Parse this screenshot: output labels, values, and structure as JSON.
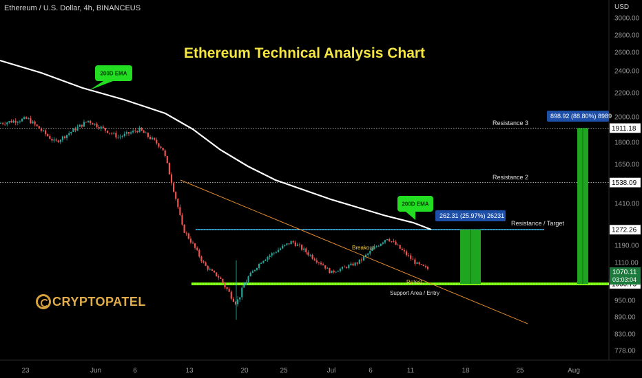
{
  "header": {
    "symbol_label": "Ethereum / U.S. Dollar, 4h, BINANCEUS",
    "title": "Ethereum Technical Analysis Chart"
  },
  "logo": {
    "text": "CRYPTOPATEL"
  },
  "colors": {
    "background": "#000000",
    "candle_up": "#26a69a",
    "candle_down": "#ef5350",
    "ema": "#ffffff",
    "trendline": "#e38a2e",
    "resistance_target": "#29b6f6",
    "support": "#76ff03",
    "projection": "#1fa51f",
    "callout": "#22dd22"
  },
  "chart_data": {
    "type": "candlestick",
    "symbol": "Ethereum / U.S. Dollar",
    "interval": "4h",
    "exchange": "BINANCEUS",
    "y_axis_label": "USD",
    "y_ticks": [
      3000,
      2800,
      2600,
      2400,
      2200,
      2000,
      1800,
      1650,
      1410,
      1190,
      1110,
      1020,
      950,
      890,
      830,
      778
    ],
    "x_ticks": [
      "23",
      "Jun",
      "6",
      "13",
      "20",
      "25",
      "Jul",
      "6",
      "11",
      "18",
      "25",
      "Aug"
    ],
    "ohlc_anchor_close": [
      [
        "23",
        1950
      ],
      [
        "27",
        1985
      ],
      [
        "30",
        1800
      ],
      [
        "Jun 2",
        1970
      ],
      [
        "Jun 5",
        1840
      ],
      [
        "Jun 7",
        1900
      ],
      [
        "Jun 10",
        1760
      ],
      [
        "13",
        1280
      ],
      [
        "16",
        1080
      ],
      [
        "18",
        940
      ],
      [
        "21",
        1120
      ],
      [
        "25",
        1210
      ],
      [
        "28",
        1100
      ],
      [
        "Jul 1",
        1050
      ],
      [
        "Jul 4",
        1110
      ],
      [
        "Jul 8",
        1230
      ],
      [
        "Jul 11",
        1100
      ],
      [
        "Jul 13",
        1070
      ]
    ],
    "last_price": "1070.11",
    "countdown": "03:03:04",
    "price_levels": [
      {
        "name": "Resistance 3",
        "value": 1911.18,
        "label": "1911.18"
      },
      {
        "name": "Resistance 2",
        "value": 1538.09,
        "label": "1538.09"
      },
      {
        "name": "Resistance / Target",
        "value": 1272.26,
        "label": "1272.26"
      },
      {
        "name": "Support Area / Entry",
        "value": 1000.75,
        "label": "1000.75"
      }
    ],
    "annotations": {
      "ema_callout": "200D EMA",
      "breakout": "Breakout",
      "retest": "Retest",
      "measure_1": "262.31 (25.97%) 26231",
      "measure_2": "898.92 (88.80%) 8989"
    }
  }
}
